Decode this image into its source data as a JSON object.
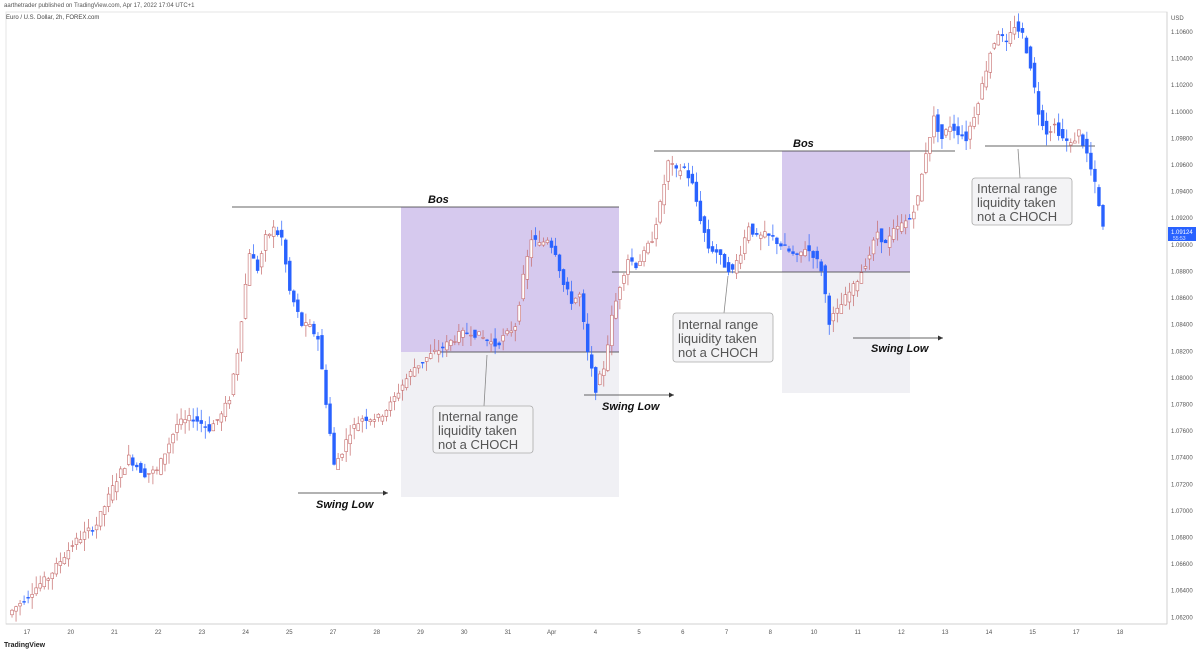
{
  "header": {
    "published": "aarthetrader published on TradingView.com, Apr 17, 2022 17:04 UTC+1",
    "symbol": "Euro / U.S. Dollar, 2h, FOREX.com"
  },
  "footer": {
    "logo": "TradingView"
  },
  "chart_data": {
    "type": "candlestick",
    "axis_unit": "USD",
    "ylim": [
      1.0615,
      1.1075
    ],
    "y_ticks": [
      "1.10600",
      "1.10400",
      "1.10200",
      "1.10000",
      "1.09800",
      "1.09600",
      "1.09400",
      "1.09200",
      "1.09000",
      "1.08800",
      "1.08600",
      "1.08400",
      "1.08200",
      "1.08000",
      "1.07800",
      "1.07600",
      "1.07400",
      "1.07200",
      "1.07000",
      "1.06800",
      "1.06600",
      "1.06400",
      "1.06200"
    ],
    "x_ticks": [
      "17",
      "20",
      "21",
      "22",
      "23",
      "24",
      "25",
      "27",
      "28",
      "29",
      "30",
      "31",
      "Apr",
      "4",
      "5",
      "6",
      "7",
      "8",
      "10",
      "11",
      "12",
      "13",
      "14",
      "15",
      "17",
      "18"
    ],
    "current_price": "1.09124",
    "countdown": "55:53",
    "colors": {
      "up": "#c56a6a",
      "down": "#2962ff",
      "zone": "#d6c9ee",
      "zone_fill": "#f0f0f4",
      "line": "#333333"
    },
    "price_path": [
      [
        0,
        1.0622
      ],
      [
        6,
        1.064
      ],
      [
        10,
        1.065
      ],
      [
        16,
        1.0675
      ],
      [
        22,
        1.069
      ],
      [
        27,
        1.0724
      ],
      [
        30,
        1.074
      ],
      [
        34,
        1.0728
      ],
      [
        37,
        1.073
      ],
      [
        42,
        1.0765
      ],
      [
        46,
        1.077
      ],
      [
        50,
        1.0762
      ],
      [
        53,
        1.0772
      ],
      [
        55,
        1.0785
      ],
      [
        57,
        1.082
      ],
      [
        60,
        1.0895
      ],
      [
        62,
        1.0882
      ],
      [
        64,
        1.0905
      ],
      [
        66,
        1.0912
      ],
      [
        68,
        1.0905
      ],
      [
        70,
        1.0865
      ],
      [
        73,
        1.084
      ],
      [
        75,
        1.0838
      ],
      [
        77,
        1.083
      ],
      [
        79,
        1.0782
      ],
      [
        81,
        1.0734
      ],
      [
        83,
        1.0745
      ],
      [
        85,
        1.076
      ],
      [
        88,
        1.077
      ],
      [
        92,
        1.077
      ],
      [
        95,
        1.078
      ],
      [
        98,
        1.0795
      ],
      [
        101,
        1.0808
      ],
      [
        104,
        1.0815
      ],
      [
        108,
        1.0823
      ],
      [
        112,
        1.0832
      ],
      [
        115,
        1.0835
      ],
      [
        118,
        1.083
      ],
      [
        121,
        1.0825
      ],
      [
        124,
        1.0833
      ],
      [
        126,
        1.084
      ],
      [
        128,
        1.0875
      ],
      [
        130,
        1.0905
      ],
      [
        132,
        1.09
      ],
      [
        134,
        1.0905
      ],
      [
        136,
        1.0895
      ],
      [
        138,
        1.087
      ],
      [
        140,
        1.0858
      ],
      [
        142,
        1.0862
      ],
      [
        144,
        1.0818
      ],
      [
        146,
        1.0792
      ],
      [
        148,
        1.0808
      ],
      [
        150,
        1.0845
      ],
      [
        152,
        1.087
      ],
      [
        154,
        1.089
      ],
      [
        156,
        1.0885
      ],
      [
        158,
        1.0893
      ],
      [
        160,
        1.0905
      ],
      [
        162,
        1.093
      ],
      [
        164,
        1.0962
      ],
      [
        166,
        1.0955
      ],
      [
        168,
        1.0958
      ],
      [
        170,
        1.0945
      ],
      [
        172,
        1.092
      ],
      [
        174,
        1.0898
      ],
      [
        176,
        1.0895
      ],
      [
        178,
        1.0885
      ],
      [
        180,
        1.088
      ],
      [
        182,
        1.0895
      ],
      [
        184,
        1.0915
      ],
      [
        186,
        1.0905
      ],
      [
        188,
        1.0907
      ],
      [
        190,
        1.0905
      ],
      [
        192,
        1.09
      ],
      [
        194,
        1.0895
      ],
      [
        196,
        1.089
      ],
      [
        198,
        1.0898
      ],
      [
        200,
        1.0893
      ],
      [
        202,
        1.0882
      ],
      [
        204,
        1.0843
      ],
      [
        206,
        1.085
      ],
      [
        208,
        1.086
      ],
      [
        210,
        1.0868
      ],
      [
        212,
        1.088
      ],
      [
        214,
        1.0893
      ],
      [
        216,
        1.091
      ],
      [
        218,
        1.09
      ],
      [
        220,
        1.091
      ],
      [
        222,
        1.0915
      ],
      [
        224,
        1.092
      ],
      [
        226,
        1.0935
      ],
      [
        228,
        1.097
      ],
      [
        230,
        1.0995
      ],
      [
        232,
        1.098
      ],
      [
        234,
        1.099
      ],
      [
        236,
        1.0985
      ],
      [
        238,
        1.098
      ],
      [
        240,
        1.0998
      ],
      [
        242,
        1.102
      ],
      [
        244,
        1.1045
      ],
      [
        246,
        1.106
      ],
      [
        248,
        1.105
      ],
      [
        250,
        1.1065
      ],
      [
        252,
        1.1058
      ],
      [
        254,
        1.1035
      ],
      [
        256,
        1.1
      ],
      [
        258,
        1.0985
      ],
      [
        260,
        1.099
      ],
      [
        262,
        1.098
      ],
      [
        264,
        1.0975
      ],
      [
        266,
        1.0985
      ],
      [
        268,
        1.0968
      ],
      [
        270,
        1.0945
      ],
      [
        272,
        1.0912
      ]
    ],
    "annotations": [
      {
        "text": "Bos",
        "x": 1.0929
      },
      {
        "text": "Bos",
        "x": 1.0969
      },
      {
        "text": "Swing Low",
        "x": 1.0718
      },
      {
        "text": "Swing Low",
        "x": 1.0786
      },
      {
        "text": "Swing Low",
        "x": 1.083
      }
    ],
    "boxes": [
      {
        "line1": "Internal range",
        "line2": "liquidity taken",
        "line3": "not a CHOCH"
      },
      {
        "line1": "Internal range",
        "line2": "liquidity taken",
        "line3": "not a CHOCH"
      },
      {
        "line1": "Internal range",
        "line2": "liquidity taken",
        "line3": "not a CHOCH"
      }
    ]
  }
}
